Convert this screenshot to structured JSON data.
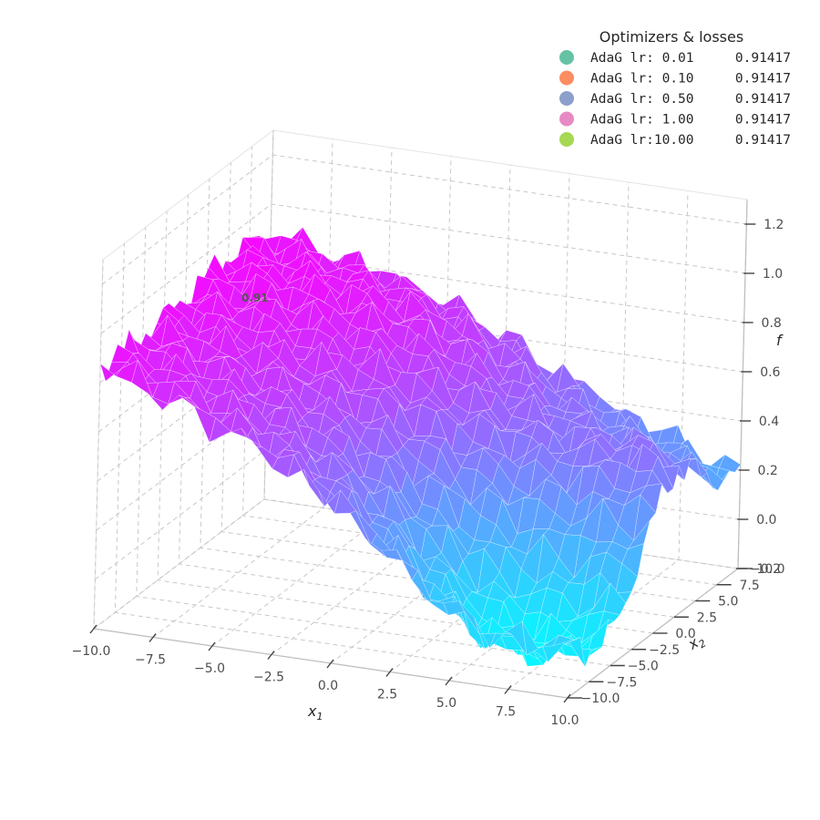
{
  "chart_data": {
    "type": "surface",
    "title": "",
    "xlabel": "x1",
    "ylabel": "x2",
    "zlabel": "f",
    "xlim": [
      -10,
      10
    ],
    "ylim": [
      -10,
      10
    ],
    "zlim": [
      -0.2,
      1.3
    ],
    "x_ticks": [
      "−10.0",
      "−7.5",
      "−5.0",
      "−2.5",
      "0.0",
      "2.5",
      "5.0",
      "7.5",
      "10.0"
    ],
    "y_ticks": [
      "−10.0",
      "−7.5",
      "−5.0",
      "−2.5",
      "0.0",
      "2.5",
      "5.0",
      "7.5",
      "10.0"
    ],
    "z_ticks": [
      "−0.2",
      "0.0",
      "0.2",
      "0.4",
      "0.6",
      "0.8",
      "1.0",
      "1.2"
    ],
    "grid": true,
    "colormap": [
      "#ff00ff",
      "#00ffff"
    ],
    "annotation": {
      "text": "0.91",
      "x": -10,
      "y": 10,
      "z": 0.91
    },
    "legend": {
      "title": "Optimizers & losses",
      "placement": "top-right",
      "entries": [
        {
          "name": "AdaG lr: 0.01",
          "loss": "0.91417",
          "color": "#66c2a5"
        },
        {
          "name": "AdaG lr: 0.10",
          "loss": "0.91417",
          "color": "#fc8d62"
        },
        {
          "name": "AdaG lr: 0.50",
          "loss": "0.91417",
          "color": "#8da0cb"
        },
        {
          "name": "AdaG lr: 1.00",
          "loss": "0.91417",
          "color": "#e78ac3"
        },
        {
          "name": "AdaG lr:10.00",
          "loss": "0.91417",
          "color": "#a6d854"
        }
      ]
    }
  }
}
